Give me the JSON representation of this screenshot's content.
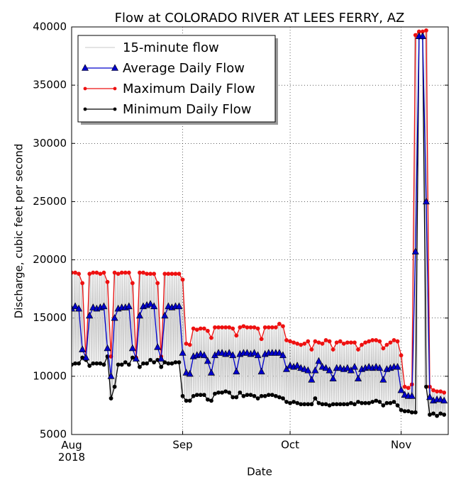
{
  "chart_data": {
    "type": "line",
    "title": "Flow at COLORADO RIVER AT LEES FERRY, AZ",
    "x_label": "Date",
    "y_label": "Discharge, cubic feet per second",
    "categories": [
      "Aug\n2018",
      null,
      null,
      null,
      null,
      null,
      null,
      null,
      null,
      null,
      null,
      null,
      null,
      null,
      null,
      null,
      null,
      null,
      null,
      null,
      null,
      null,
      null,
      null,
      null,
      null,
      null,
      null,
      null,
      null,
      null,
      "Sep",
      null,
      null,
      null,
      null,
      null,
      null,
      null,
      null,
      null,
      null,
      null,
      null,
      null,
      null,
      null,
      null,
      null,
      null,
      null,
      null,
      null,
      null,
      null,
      null,
      null,
      null,
      null,
      null,
      null,
      "Oct",
      null,
      null,
      null,
      null,
      null,
      null,
      null,
      null,
      null,
      null,
      null,
      null,
      null,
      null,
      null,
      null,
      null,
      null,
      null,
      null,
      null,
      null,
      null,
      null,
      null,
      null,
      null,
      null,
      null,
      null,
      "Nov",
      null,
      null,
      null,
      null,
      null,
      null,
      null,
      null,
      null,
      null,
      null,
      null
    ],
    "series": [
      {
        "name": "15-minute flow",
        "color": "#c8c8c8",
        "range_of": [
          2,
          3
        ]
      },
      {
        "name": "Average Daily Flow",
        "color": "#0000cc",
        "marker": "triangle",
        "values": [
          15800,
          16000,
          15800,
          12300,
          11600,
          15200,
          15900,
          15800,
          15900,
          16000,
          12400,
          10000,
          15000,
          15800,
          15900,
          15900,
          16000,
          12400,
          11500,
          15200,
          16000,
          16100,
          16200,
          16000,
          12500,
          11500,
          15200,
          16000,
          15900,
          16000,
          16000,
          12000,
          10300,
          10200,
          11700,
          11800,
          11900,
          11800,
          11300,
          10300,
          11800,
          12000,
          12000,
          11900,
          12000,
          11800,
          10400,
          11900,
          12000,
          12000,
          11900,
          12000,
          11800,
          10400,
          11900,
          12000,
          12000,
          12000,
          12000,
          11800,
          10600,
          10900,
          10800,
          10900,
          10700,
          10600,
          10500,
          9700,
          10500,
          11300,
          10800,
          10700,
          10500,
          9800,
          10700,
          10700,
          10600,
          10700,
          10500,
          10800,
          9800,
          10600,
          10700,
          10800,
          10700,
          10800,
          10700,
          9700,
          10600,
          10700,
          10800,
          10800,
          8800,
          8400,
          8300,
          8300,
          20700,
          39200,
          39200,
          25000,
          8200,
          7900,
          8000,
          8000,
          7900
        ]
      },
      {
        "name": "Maximum Daily Flow",
        "color": "#ee1111",
        "marker": "circle",
        "values": [
          18900,
          18900,
          18800,
          18000,
          11500,
          18800,
          18900,
          18900,
          18800,
          18900,
          18100,
          11700,
          18900,
          18800,
          18900,
          18900,
          18900,
          18000,
          11600,
          18900,
          18900,
          18800,
          18800,
          18800,
          18000,
          11700,
          18800,
          18800,
          18800,
          18800,
          18800,
          18300,
          12800,
          12700,
          14100,
          14000,
          14100,
          14100,
          13900,
          13300,
          14200,
          14200,
          14200,
          14200,
          14200,
          14100,
          13500,
          14200,
          14300,
          14200,
          14200,
          14200,
          14100,
          13200,
          14200,
          14200,
          14200,
          14200,
          14500,
          14300,
          13100,
          13000,
          12900,
          12800,
          12700,
          12800,
          13000,
          12300,
          13000,
          12900,
          12800,
          13100,
          13000,
          12300,
          12900,
          13000,
          12800,
          12900,
          12900,
          12900,
          12300,
          12700,
          12900,
          13000,
          13100,
          13100,
          13000,
          12400,
          12700,
          12900,
          13100,
          13000,
          11800,
          9100,
          9000,
          9300,
          39300,
          39600,
          39600,
          39700,
          9100,
          8800,
          8700,
          8700,
          8600
        ]
      },
      {
        "name": "Minimum Daily Flow",
        "color": "#000000",
        "marker": "circle",
        "values": [
          11000,
          11100,
          11100,
          11600,
          11400,
          10900,
          11100,
          11100,
          11100,
          11000,
          11700,
          8100,
          9100,
          11000,
          11000,
          11200,
          11000,
          11600,
          11500,
          10800,
          11100,
          11100,
          11400,
          11200,
          11400,
          10800,
          11200,
          11100,
          11100,
          11200,
          11200,
          8300,
          7900,
          7900,
          8300,
          8400,
          8400,
          8400,
          8000,
          7900,
          8500,
          8600,
          8600,
          8700,
          8600,
          8200,
          8200,
          8600,
          8300,
          8400,
          8400,
          8300,
          8100,
          8300,
          8300,
          8400,
          8400,
          8300,
          8200,
          8100,
          7800,
          7700,
          7800,
          7700,
          7600,
          7600,
          7600,
          7600,
          8100,
          7700,
          7600,
          7600,
          7500,
          7600,
          7600,
          7600,
          7600,
          7600,
          7700,
          7600,
          7800,
          7700,
          7700,
          7700,
          7800,
          7900,
          7800,
          7500,
          7700,
          7700,
          7800,
          7500,
          7100,
          7000,
          7000,
          6900,
          6900,
          39100,
          39100,
          9100,
          6700,
          6800,
          6600,
          6800,
          6700
        ]
      }
    ],
    "ylim": [
      5000,
      40000
    ],
    "yticks": [
      5000,
      10000,
      15000,
      20000,
      25000,
      30000,
      35000,
      40000
    ],
    "grid": true,
    "legend": "upper left"
  }
}
